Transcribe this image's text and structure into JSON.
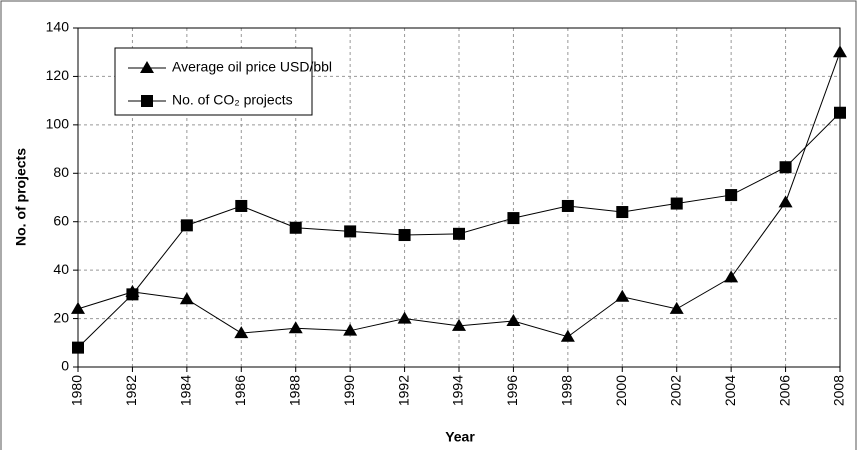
{
  "chart_data": {
    "type": "line",
    "x_label": "Year",
    "y_label": "No. of projects",
    "x": [
      1980,
      1982,
      1984,
      1986,
      1988,
      1990,
      1992,
      1994,
      1996,
      1998,
      2000,
      2002,
      2004,
      2006,
      2008
    ],
    "series": [
      {
        "name": "Average oil price USD/bbl",
        "color": "#000000",
        "marker": "triangle",
        "values": [
          24,
          31,
          28,
          14,
          16,
          15,
          20,
          17,
          19,
          12.5,
          29,
          24,
          37,
          68,
          130
        ]
      },
      {
        "name": "No. of CO₂ projects",
        "color": "#000000",
        "marker": "square",
        "values": [
          8,
          30,
          58.5,
          66.5,
          57.5,
          56,
          54.5,
          55,
          61.5,
          66.5,
          64,
          67.5,
          71,
          82.5,
          105
        ]
      }
    ],
    "xlim": [
      1980,
      2008
    ],
    "xticks": [
      1980,
      1982,
      1984,
      1986,
      1988,
      1990,
      1992,
      1994,
      1996,
      1998,
      2000,
      2002,
      2004,
      2006,
      2008
    ],
    "ylim": [
      0,
      140
    ],
    "yticks": [
      0,
      20,
      40,
      60,
      80,
      100,
      120,
      140
    ],
    "grid": true,
    "legend": "upper left"
  }
}
